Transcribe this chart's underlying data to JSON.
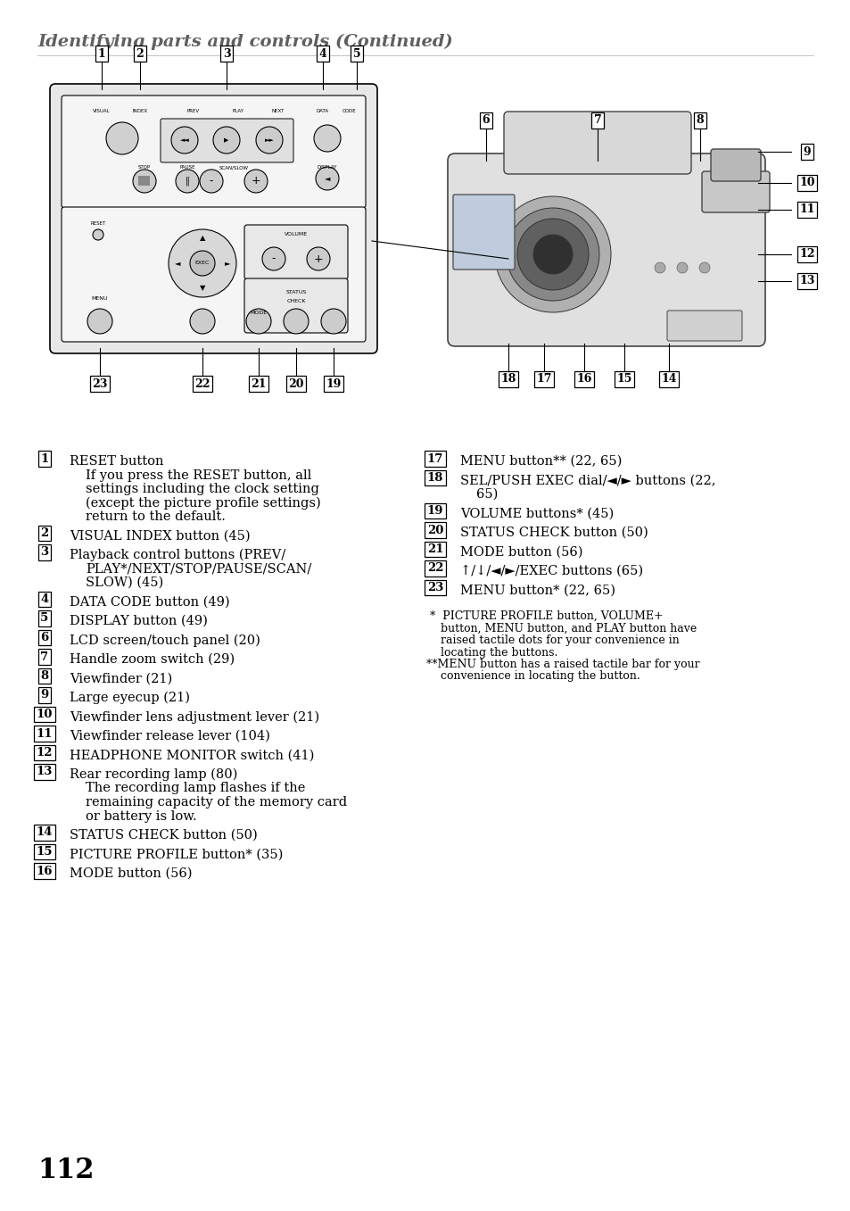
{
  "title": "Identifying parts and controls (Continued)",
  "title_color": "#606060",
  "title_fontsize": 14,
  "bg_color": "#ffffff",
  "page_number": "112",
  "left_items": [
    {
      "num": "1",
      "lines": [
        "RESET button",
        "If you press the RESET button, all",
        "settings including the clock setting",
        "(except the picture profile settings)",
        "return to the default."
      ]
    },
    {
      "num": "2",
      "lines": [
        "VISUAL INDEX button (45)"
      ]
    },
    {
      "num": "3",
      "lines": [
        "Playback control buttons (PREV/",
        "PLAY*/NEXT/STOP/PAUSE/SCAN/",
        "SLOW) (45)"
      ]
    },
    {
      "num": "4",
      "lines": [
        "DATA CODE button (49)"
      ]
    },
    {
      "num": "5",
      "lines": [
        "DISPLAY button (49)"
      ]
    },
    {
      "num": "6",
      "lines": [
        "LCD screen/touch panel (20)"
      ]
    },
    {
      "num": "7",
      "lines": [
        "Handle zoom switch (29)"
      ]
    },
    {
      "num": "8",
      "lines": [
        "Viewfinder (21)"
      ]
    },
    {
      "num": "9",
      "lines": [
        "Large eyecup (21)"
      ]
    },
    {
      "num": "10",
      "lines": [
        "Viewfinder lens adjustment lever (21)"
      ]
    },
    {
      "num": "11",
      "lines": [
        "Viewfinder release lever (104)"
      ]
    },
    {
      "num": "12",
      "lines": [
        "HEADPHONE MONITOR switch (41)"
      ]
    },
    {
      "num": "13",
      "lines": [
        "Rear recording lamp (80)",
        "The recording lamp flashes if the",
        "remaining capacity of the memory card",
        "or battery is low."
      ]
    },
    {
      "num": "14",
      "lines": [
        "STATUS CHECK button (50)"
      ]
    },
    {
      "num": "15",
      "lines": [
        "PICTURE PROFILE button* (35)"
      ]
    },
    {
      "num": "16",
      "lines": [
        "MODE button (56)"
      ]
    }
  ],
  "right_items": [
    {
      "num": "17",
      "lines": [
        "MENU button** (22, 65)"
      ]
    },
    {
      "num": "18",
      "lines": [
        "SEL/PUSH EXEC dial/◄/► buttons (22,",
        "65)"
      ]
    },
    {
      "num": "19",
      "lines": [
        "VOLUME buttons* (45)"
      ]
    },
    {
      "num": "20",
      "lines": [
        "STATUS CHECK button (50)"
      ]
    },
    {
      "num": "21",
      "lines": [
        "MODE button (56)"
      ]
    },
    {
      "num": "22",
      "lines": [
        "↑/↓/◄/►/EXEC buttons (65)"
      ]
    },
    {
      "num": "23",
      "lines": [
        "MENU button* (22, 65)"
      ]
    }
  ],
  "footnotes": [
    " *  PICTURE PROFILE button, VOLUME+",
    "    button, MENU button, and PLAY button have",
    "    raised tactile dots for your convenience in",
    "    locating the buttons.",
    "**MENU button has a raised tactile bar for your",
    "    convenience in locating the button."
  ]
}
